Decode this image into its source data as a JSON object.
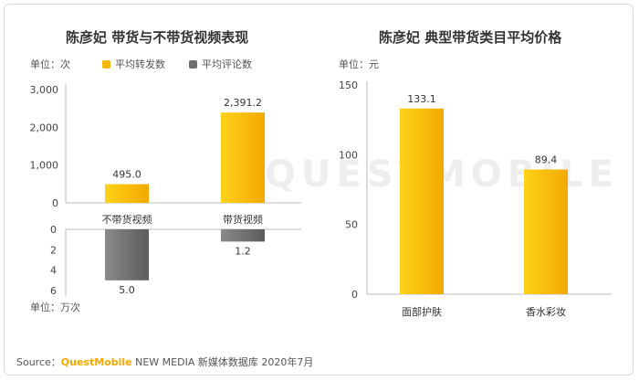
{
  "left_chart": {
    "title": "陈彦妃 带货与不带货视频表现",
    "unit_top": "单位：次",
    "unit_bottom": "单位：万次",
    "legend": [
      {
        "label": "平均转发数",
        "color": "#f5b800"
      },
      {
        "label": "平均评论数",
        "color": "#6e6e6e"
      }
    ]
  },
  "right_chart": {
    "title": "陈彦妃 典型带货类目平均价格",
    "unit": "单位：元"
  },
  "source": {
    "prefix": "Source：",
    "brand": "QuestMobile",
    "suffix": " NEW MEDIA 新媒体数据库 2020年7月"
  },
  "watermark": "QUESTMOBILE",
  "chart_data": [
    {
      "type": "bar",
      "title": "陈彦妃 带货与不带货视频表现",
      "categories": [
        "不带货视频",
        "带货视频"
      ],
      "series": [
        {
          "name": "平均转发数",
          "unit": "次",
          "values": [
            495.0,
            2391.2
          ],
          "labels": [
            "495.0",
            "2,391.2"
          ],
          "color": "#f5b800",
          "ylim": [
            0,
            3000
          ],
          "ticks": [
            0,
            1000,
            2000,
            3000
          ],
          "tick_labels": [
            "0",
            "1,000",
            "2,000",
            "3,000"
          ]
        },
        {
          "name": "平均评论数",
          "unit": "万次",
          "values": [
            5.0,
            1.2
          ],
          "labels": [
            "5.0",
            "1.2"
          ],
          "color": "#6e6e6e",
          "ylim": [
            0,
            6
          ],
          "ticks": [
            0,
            2,
            4,
            6
          ],
          "tick_labels": [
            "0",
            "2",
            "4",
            "6"
          ],
          "direction": "down"
        }
      ]
    },
    {
      "type": "bar",
      "title": "陈彦妃 典型带货类目平均价格",
      "categories": [
        "面部护肤",
        "香水彩妆"
      ],
      "values": [
        133.1,
        89.4
      ],
      "labels": [
        "133.1",
        "89.4"
      ],
      "ylim": [
        0,
        150
      ],
      "ticks": [
        0,
        50,
        100,
        150
      ],
      "tick_labels": [
        "0",
        "50",
        "100",
        "150"
      ],
      "ylabel": "元",
      "color": "#f5b800"
    }
  ]
}
